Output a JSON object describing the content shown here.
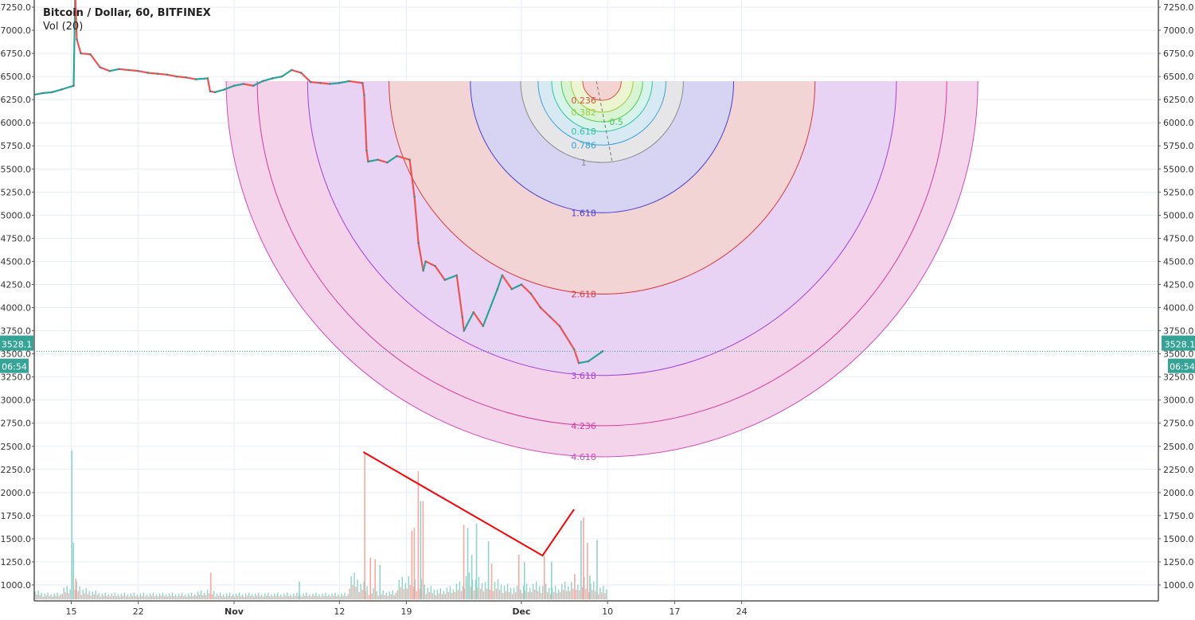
{
  "header": {
    "title": "Bitcoin / Dollar, 60, BITFINEX",
    "indicator": "Vol (20)"
  },
  "colors": {
    "up": "#26a69a",
    "down": "#ef5350",
    "vol_up": "#8fd3c9",
    "vol_down": "#f7a8a3",
    "grid": "#e6eef5",
    "price_label": "#35a497",
    "trendline": "#ff0000"
  },
  "chart_data": {
    "type": "line",
    "title": "Bitcoin / Dollar, 60, BITFINEX",
    "xlabel": "",
    "ylabel": "",
    "ylim": [
      850,
      7330
    ],
    "xlim": [
      "2018-10-11",
      "2019-01-08"
    ],
    "x_ticks": [
      {
        "date": "2018-10-15",
        "label": "15"
      },
      {
        "date": "2018-10-22",
        "label": "22"
      },
      {
        "date": "2018-11-01",
        "label": "Nov"
      },
      {
        "date": "2018-11-12",
        "label": "12"
      },
      {
        "date": "2018-11-19",
        "label": "19"
      },
      {
        "date": "2018-12-01",
        "label": "Dec"
      },
      {
        "date": "2018-12-10",
        "label": "10"
      },
      {
        "date": "2018-12-17",
        "label": "17"
      },
      {
        "date": "2018-12-24",
        "label": "24"
      }
    ],
    "y_ticks": [
      "1000.0",
      "1250.0",
      "1500.0",
      "1750.0",
      "2000.0",
      "2250.0",
      "2500.0",
      "2750.0",
      "3000.0",
      "3250.0",
      "3500.0",
      "3750.0",
      "4000.0",
      "4250.0",
      "4500.0",
      "4750.0",
      "5000.0",
      "5250.0",
      "5500.0",
      "5750.0",
      "6000.0",
      "6250.0",
      "6500.0",
      "6750.0",
      "7000.0",
      "7250.0"
    ],
    "grid": true,
    "current_price": {
      "value": "3528.1",
      "countdown": "06:54"
    },
    "price_series": [
      [
        "2018-10-11T00",
        6300
      ],
      [
        "2018-10-12T00",
        6320
      ],
      [
        "2018-10-13T00",
        6330
      ],
      [
        "2018-10-14T00",
        6360
      ],
      [
        "2018-10-15T06",
        6400
      ],
      [
        "2018-10-15T10",
        7400
      ],
      [
        "2018-10-15T14",
        6900
      ],
      [
        "2018-10-16T00",
        6750
      ],
      [
        "2018-10-17T00",
        6740
      ],
      [
        "2018-10-18T00",
        6600
      ],
      [
        "2018-10-19T00",
        6560
      ],
      [
        "2018-10-20T00",
        6580
      ],
      [
        "2018-10-21T00",
        6570
      ],
      [
        "2018-10-22T00",
        6560
      ],
      [
        "2018-10-23T00",
        6540
      ],
      [
        "2018-10-24T00",
        6530
      ],
      [
        "2018-10-25T00",
        6520
      ],
      [
        "2018-10-26T00",
        6500
      ],
      [
        "2018-10-27T00",
        6490
      ],
      [
        "2018-10-28T00",
        6470
      ],
      [
        "2018-10-29T06",
        6480
      ],
      [
        "2018-10-29T12",
        6340
      ],
      [
        "2018-10-30T00",
        6330
      ],
      [
        "2018-10-31T00",
        6360
      ],
      [
        "2018-11-01T00",
        6400
      ],
      [
        "2018-11-02T00",
        6420
      ],
      [
        "2018-11-03T00",
        6400
      ],
      [
        "2018-11-04T00",
        6450
      ],
      [
        "2018-11-05T00",
        6480
      ],
      [
        "2018-11-06T00",
        6500
      ],
      [
        "2018-11-07T00",
        6570
      ],
      [
        "2018-11-08T00",
        6540
      ],
      [
        "2018-11-09T00",
        6440
      ],
      [
        "2018-11-10T00",
        6430
      ],
      [
        "2018-11-11T00",
        6420
      ],
      [
        "2018-11-12T00",
        6430
      ],
      [
        "2018-11-13T00",
        6450
      ],
      [
        "2018-11-14T10",
        6430
      ],
      [
        "2018-11-14T14",
        6300
      ],
      [
        "2018-11-14T20",
        5700
      ],
      [
        "2018-11-15T00",
        5580
      ],
      [
        "2018-11-16T00",
        5600
      ],
      [
        "2018-11-17T00",
        5570
      ],
      [
        "2018-11-18T00",
        5640
      ],
      [
        "2018-11-19T08",
        5600
      ],
      [
        "2018-11-19T20",
        5200
      ],
      [
        "2018-11-20T06",
        4700
      ],
      [
        "2018-11-20T18",
        4400
      ],
      [
        "2018-11-21T00",
        4500
      ],
      [
        "2018-11-22T00",
        4450
      ],
      [
        "2018-11-23T00",
        4300
      ],
      [
        "2018-11-24T06",
        4350
      ],
      [
        "2018-11-24T20",
        3900
      ],
      [
        "2018-11-25T00",
        3750
      ],
      [
        "2018-11-26T00",
        3950
      ],
      [
        "2018-11-27T00",
        3800
      ],
      [
        "2018-11-28T12",
        4200
      ],
      [
        "2018-11-29T00",
        4350
      ],
      [
        "2018-11-30T00",
        4200
      ],
      [
        "2018-12-01T00",
        4250
      ],
      [
        "2018-12-02T00",
        4150
      ],
      [
        "2018-12-03T00",
        4000
      ],
      [
        "2018-12-04T00",
        3900
      ],
      [
        "2018-12-05T00",
        3800
      ],
      [
        "2018-12-06T12",
        3550
      ],
      [
        "2018-12-07T00",
        3400
      ],
      [
        "2018-12-08T00",
        3420
      ],
      [
        "2018-12-09T12",
        3528.1
      ]
    ],
    "volume_relative_percent": {
      "daily_base": [
        4,
        4,
        3,
        3,
        6,
        8,
        5,
        4,
        3,
        3,
        3,
        3,
        3,
        3,
        3,
        3,
        3,
        3,
        4,
        5,
        3,
        3,
        3,
        3,
        3,
        3,
        3,
        3,
        3,
        3,
        3,
        3,
        3,
        3,
        12,
        8,
        5,
        4,
        4,
        10,
        12,
        9,
        6,
        5,
        6,
        8,
        12,
        10,
        9,
        9,
        7,
        6,
        7,
        8,
        7,
        6,
        8,
        9,
        10,
        8,
        6
      ],
      "base_start": "2018-10-10",
      "spikes": [
        [
          "2018-10-15T00",
          100,
          "up"
        ],
        [
          "2018-10-15T04",
          38,
          "up"
        ],
        [
          "2018-10-15T10",
          14,
          "down"
        ],
        [
          "2018-10-29T12",
          18,
          "down"
        ],
        [
          "2018-11-07T18",
          12,
          "up"
        ],
        [
          "2018-11-14T14",
          98,
          "down"
        ],
        [
          "2018-11-15T04",
          28,
          "down"
        ],
        [
          "2018-11-15T16",
          27,
          "down"
        ],
        [
          "2018-11-16T04",
          23,
          "up"
        ],
        [
          "2018-11-19T12",
          46,
          "down"
        ],
        [
          "2018-11-19T18",
          48,
          "down"
        ],
        [
          "2018-11-20T04",
          86,
          "down"
        ],
        [
          "2018-11-20T10",
          66,
          "up"
        ],
        [
          "2018-11-20T16",
          66,
          "down"
        ],
        [
          "2018-11-24T22",
          50,
          "down"
        ],
        [
          "2018-11-25T08",
          48,
          "up"
        ],
        [
          "2018-11-25T18",
          30,
          "up"
        ],
        [
          "2018-11-26T06",
          51,
          "up"
        ],
        [
          "2018-11-27T12",
          39,
          "up"
        ],
        [
          "2018-11-27T20",
          24,
          "down"
        ],
        [
          "2018-11-30T16",
          30,
          "down"
        ],
        [
          "2018-12-01T06",
          25,
          "up"
        ],
        [
          "2018-12-03T08",
          29,
          "down"
        ],
        [
          "2018-12-04T02",
          25,
          "up"
        ],
        [
          "2018-12-06T12",
          17,
          "down"
        ],
        [
          "2018-12-07T04",
          53,
          "up"
        ],
        [
          "2018-12-07T10",
          55,
          "down"
        ],
        [
          "2018-12-07T20",
          38,
          "down"
        ],
        [
          "2018-12-08T02",
          16,
          "up"
        ],
        [
          "2018-12-08T20",
          40,
          "up"
        ]
      ]
    },
    "fib_circles": {
      "center": {
        "date": "2018-12-09T10",
        "price": 6450
      },
      "level1_radius_price": 880,
      "levels": [
        {
          "level": 4.618,
          "label": "4.618",
          "stroke": "#d349b6",
          "fill": "#f3d2ea"
        },
        {
          "level": 4.236,
          "label": "4.236",
          "stroke": "#d63a9c",
          "fill": "#f3d2ea"
        },
        {
          "level": 3.618,
          "label": "3.618",
          "stroke": "#a040d8",
          "fill": "#e8d3f4"
        },
        {
          "level": 2.618,
          "label": "2.618",
          "stroke": "#d93a3f",
          "fill": "#f2d4d2"
        },
        {
          "level": 1.618,
          "label": "1.618",
          "stroke": "#4a3fd0",
          "fill": "#d4d4f3"
        },
        {
          "level": 1,
          "label": "1",
          "stroke": "#8a8a8a",
          "fill": "#e7e7e7"
        },
        {
          "level": 0.786,
          "label": "0.786",
          "stroke": "#3b9fd8",
          "fill": "#d6eaf4"
        },
        {
          "level": 0.618,
          "label": "0.618",
          "stroke": "#2fc2a3",
          "fill": "#d8f3ea"
        },
        {
          "level": 0.5,
          "label": "0.5",
          "stroke": "#4cca4c",
          "fill": "#d9f3d2"
        },
        {
          "level": 0.382,
          "label": "0.382",
          "stroke": "#9dcc3c",
          "fill": "#eef3d2"
        },
        {
          "level": 0.236,
          "label": "0.236",
          "stroke": "#d9523a",
          "fill": "#f4d2d2"
        }
      ]
    },
    "trendlines": [
      {
        "points": [
          [
            "2018-11-14T12",
            2438
          ],
          [
            "2018-12-03T05",
            1318
          ],
          [
            "2018-12-06T12",
            1818
          ]
        ]
      }
    ]
  }
}
